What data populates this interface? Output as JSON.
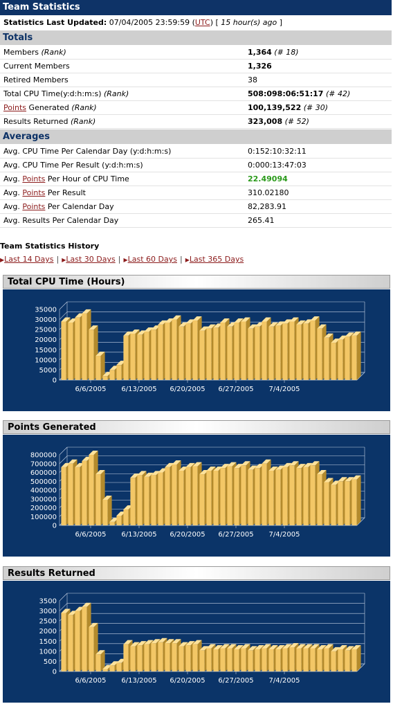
{
  "header": {
    "title": "Team Statistics"
  },
  "updated": {
    "label": "Statistics Last Updated:",
    "datetime": "07/04/2005 23:59:59 (",
    "tz_link": "UTC",
    "after_tz": ")",
    "ago_prefix": "[ ",
    "ago": "15 hour(s) ago",
    "ago_suffix": " ]"
  },
  "totals": {
    "heading": "Totals",
    "rows": [
      {
        "label": "Members",
        "label_rank": " (Rank)",
        "value": "1,364",
        "value_rank": " (# 18)"
      },
      {
        "label": "Current Members",
        "value": "1,326"
      },
      {
        "label": "Retired Members",
        "value": "38"
      },
      {
        "label": "Total CPU Time(y:d:h:m:s)",
        "label_rank": " (Rank)",
        "value": "508:098:06:51:17",
        "value_rank": " (# 42)"
      },
      {
        "link": "Points",
        "label": " Generated",
        "label_rank": " (Rank)",
        "value": "100,139,522",
        "value_rank": " (# 30)"
      },
      {
        "label": "Results Returned",
        "label_rank": " (Rank)",
        "value": "323,008",
        "value_rank": " (# 52)"
      }
    ]
  },
  "averages": {
    "heading": "Averages",
    "rows": [
      {
        "label": "Avg. CPU Time Per Calendar Day (y:d:h:m:s)",
        "value": "0:152:10:32:11"
      },
      {
        "label": "Avg. CPU Time Per Result (y:d:h:m:s)",
        "value": "0:000:13:47:03"
      },
      {
        "pre": "Avg. ",
        "link": "Points",
        "label": " Per Hour of CPU Time",
        "value": "22.49094",
        "highlight": true
      },
      {
        "pre": "Avg. ",
        "link": "Points",
        "label": " Per Result",
        "value": "310.02180"
      },
      {
        "pre": "Avg. ",
        "link": "Points",
        "label": " Per Calendar Day",
        "value": "82,283.91"
      },
      {
        "label": "Avg. Results Per Calendar Day",
        "value": "265.41"
      }
    ]
  },
  "history": {
    "title": "Team Statistics History",
    "links": [
      "Last 14 Days",
      "Last 30 Days",
      "Last 60 Days",
      "Last 365 Days"
    ]
  },
  "colors": {
    "navy": "#0e3367",
    "bar_face": "#f3c766",
    "bar_top": "#ffe29a",
    "bar_side": "#b38a2c",
    "green": "#2a9a1a",
    "link": "#8b1a1a"
  },
  "chart_data": [
    {
      "type": "bar",
      "title": "Total CPU Time (Hours)",
      "ylim": [
        0,
        35000
      ],
      "yticks": [
        0,
        5000,
        10000,
        15000,
        20000,
        25000,
        30000,
        35000
      ],
      "xtick_labels": [
        "6/6/2005",
        "6/13/2005",
        "6/20/2005",
        "6/27/2005",
        "7/4/2005"
      ],
      "xtick_index": [
        4,
        11,
        18,
        25,
        32
      ],
      "values": [
        29000,
        28500,
        31000,
        33000,
        25000,
        12000,
        2000,
        5000,
        7500,
        22000,
        23000,
        22500,
        24000,
        25000,
        27500,
        28500,
        30000,
        26500,
        28000,
        29500,
        24500,
        25500,
        26000,
        28500,
        26500,
        28500,
        29000,
        25500,
        26500,
        29000,
        26500,
        27000,
        28000,
        29000,
        27500,
        28000,
        29500,
        25500,
        21000,
        18500,
        20000,
        21500,
        22000
      ]
    },
    {
      "type": "bar",
      "title": "Points Generated",
      "ylim": [
        0,
        800000
      ],
      "yticks": [
        0,
        100000,
        200000,
        300000,
        400000,
        500000,
        600000,
        700000,
        800000
      ],
      "xtick_labels": [
        "6/6/2005",
        "6/13/2005",
        "6/20/2005",
        "6/27/2005",
        "7/4/2005"
      ],
      "xtick_index": [
        4,
        11,
        18,
        25,
        32
      ],
      "values": [
        660000,
        700000,
        660000,
        730000,
        800000,
        580000,
        290000,
        40000,
        110000,
        180000,
        540000,
        570000,
        550000,
        570000,
        600000,
        660000,
        690000,
        620000,
        660000,
        670000,
        580000,
        620000,
        620000,
        650000,
        670000,
        650000,
        680000,
        630000,
        650000,
        700000,
        620000,
        630000,
        660000,
        680000,
        650000,
        660000,
        680000,
        580000,
        490000,
        460000,
        500000,
        500000,
        520000
      ]
    },
    {
      "type": "bar",
      "title": "Results Returned",
      "ylim": [
        0,
        3500
      ],
      "yticks": [
        0,
        500,
        1000,
        1500,
        2000,
        2500,
        3000,
        3500
      ],
      "xtick_labels": [
        "6/6/2005",
        "6/13/2005",
        "6/20/2005",
        "6/27/2005",
        "7/4/2005"
      ],
      "xtick_index": [
        4,
        11,
        18,
        25,
        32
      ],
      "values": [
        2900,
        2800,
        3000,
        3200,
        2200,
        850,
        120,
        300,
        420,
        1350,
        1250,
        1300,
        1350,
        1400,
        1450,
        1400,
        1400,
        1250,
        1300,
        1350,
        1050,
        1150,
        1100,
        1150,
        1150,
        1100,
        1150,
        1050,
        1100,
        1150,
        1100,
        1100,
        1150,
        1200,
        1150,
        1150,
        1150,
        1100,
        1150,
        1000,
        1100,
        1050,
        1100
      ]
    }
  ]
}
